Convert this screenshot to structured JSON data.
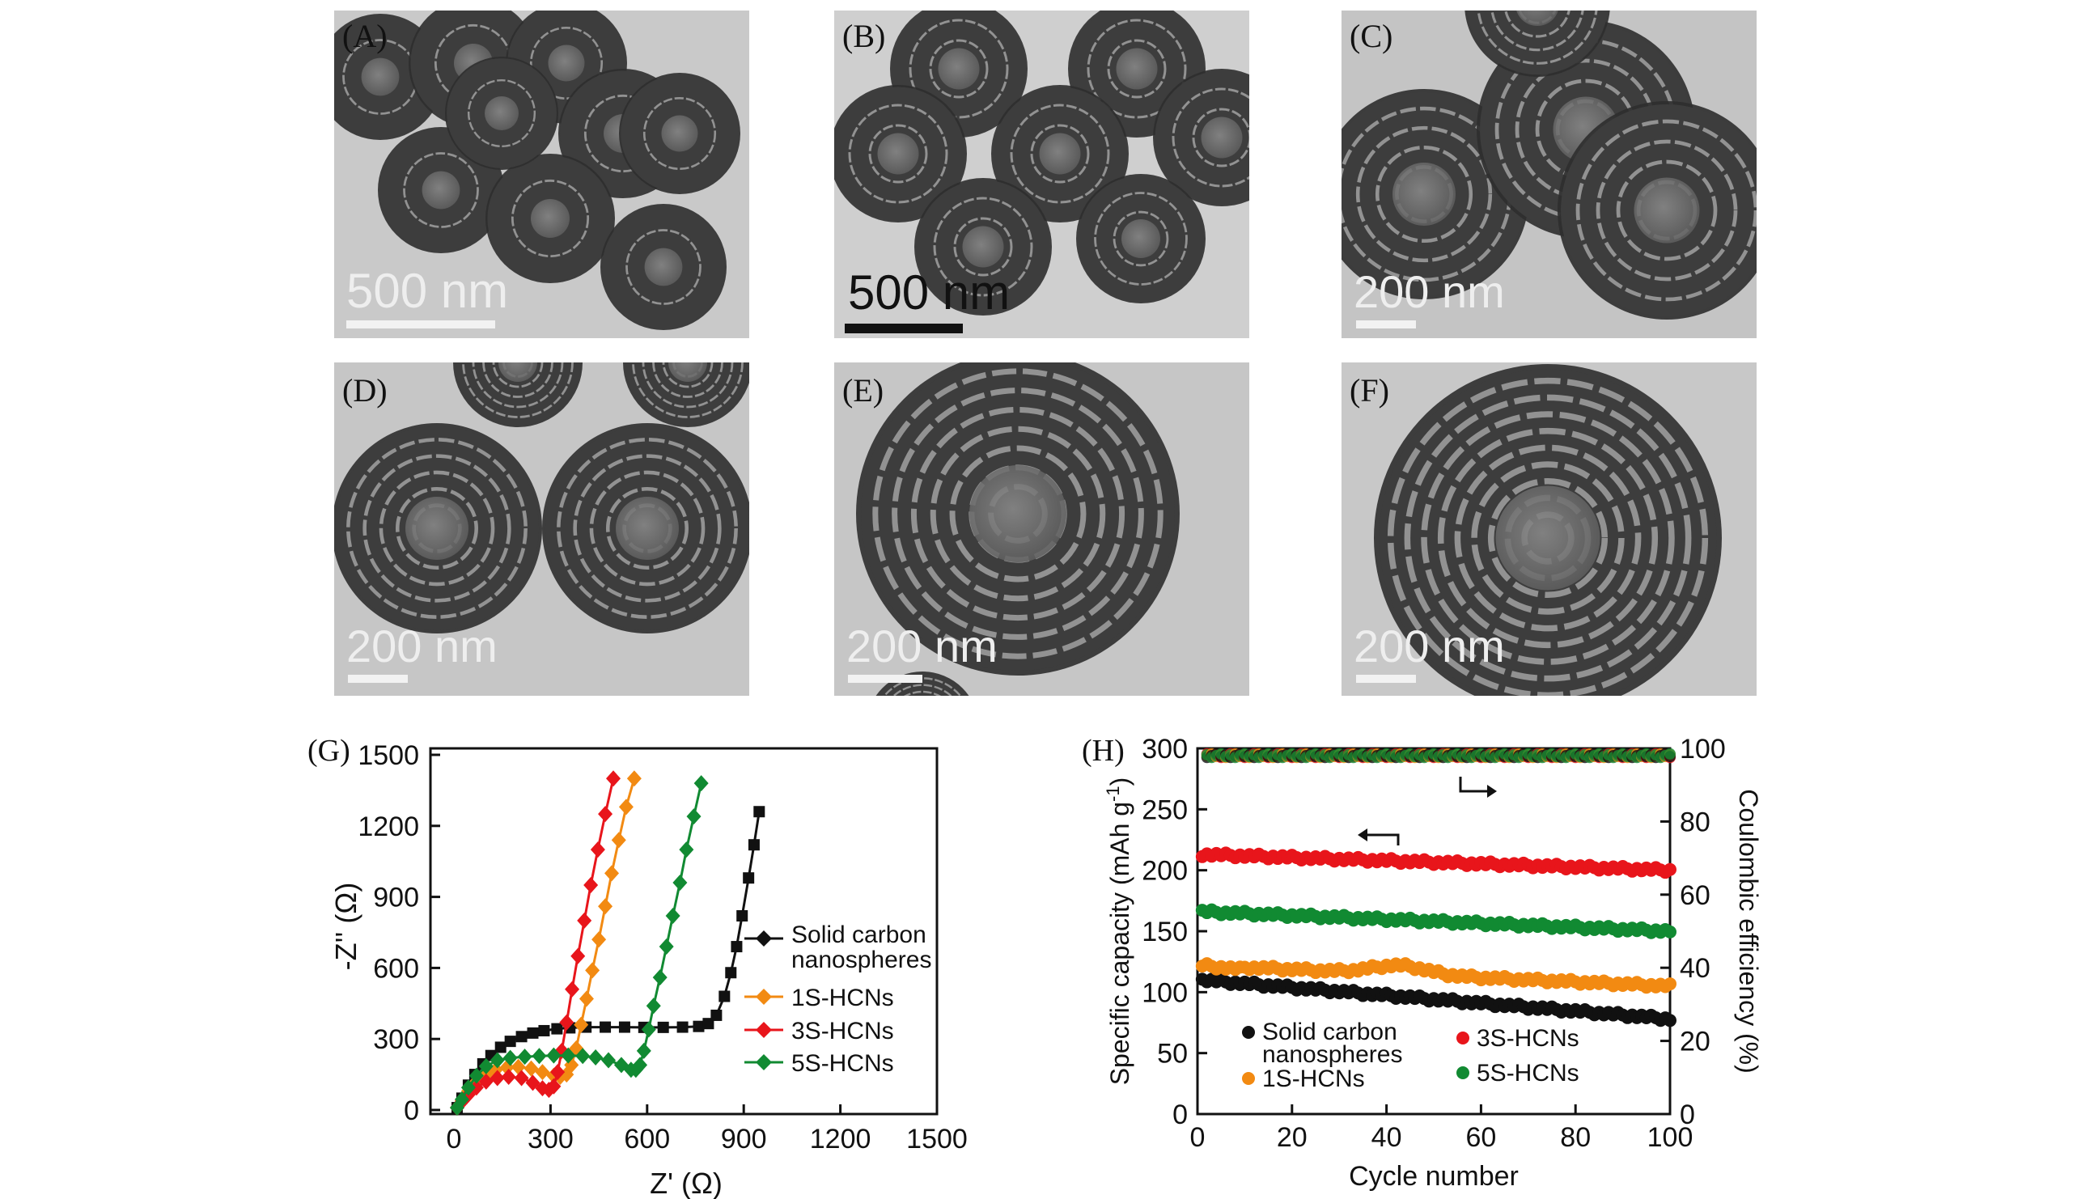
{
  "panels": [
    {
      "id": "A",
      "label": "(A)",
      "scale": "500 nm",
      "scale_bar_dark": false
    },
    {
      "id": "B",
      "label": "(B)",
      "scale": "500 nm",
      "scale_bar_dark": true
    },
    {
      "id": "C",
      "label": "(C)",
      "scale": "200 nm",
      "scale_bar_dark": false
    },
    {
      "id": "D",
      "label": "(D)",
      "scale": "200 nm",
      "scale_bar_dark": false
    },
    {
      "id": "E",
      "label": "(E)",
      "scale": "200 nm",
      "scale_bar_dark": false
    },
    {
      "id": "F",
      "label": "(F)",
      "scale": "200 nm",
      "scale_bar_dark": false
    }
  ],
  "colors": {
    "solid": "#111111",
    "s1": "#f28a12",
    "s3": "#e8151b",
    "s5": "#118a32",
    "axis": "#111111"
  },
  "chart_data": [
    {
      "id": "G",
      "panel_label": "(G)",
      "type": "line",
      "title": "",
      "xlabel": "Z' (Ω)",
      "ylabel": "-Z'' (Ω)",
      "xlim": [
        0,
        1500
      ],
      "ylim": [
        0,
        1500
      ],
      "x_ticks": [
        0,
        300,
        600,
        900,
        1200,
        1500
      ],
      "y_ticks": [
        0,
        300,
        600,
        900,
        1200,
        1500
      ],
      "legend": [
        "Solid carbon nanospheres",
        "1S-HCNs",
        "3S-HCNs",
        "5S-HCNs"
      ],
      "legend_position": "right",
      "series": [
        {
          "name": "Solid carbon nanospheres",
          "color": "#111111",
          "marker": "square",
          "points": [
            [
              10,
              10
            ],
            [
              25,
              50
            ],
            [
              45,
              105
            ],
            [
              65,
              150
            ],
            [
              90,
              195
            ],
            [
              115,
              230
            ],
            [
              145,
              265
            ],
            [
              175,
              290
            ],
            [
              210,
              310
            ],
            [
              245,
              325
            ],
            [
              280,
              335
            ],
            [
              320,
              343
            ],
            [
              360,
              347
            ],
            [
              410,
              350
            ],
            [
              470,
              350
            ],
            [
              530,
              350
            ],
            [
              590,
              349
            ],
            [
              650,
              349
            ],
            [
              710,
              350
            ],
            [
              760,
              353
            ],
            [
              790,
              365
            ],
            [
              815,
              400
            ],
            [
              840,
              480
            ],
            [
              860,
              580
            ],
            [
              878,
              690
            ],
            [
              895,
              820
            ],
            [
              915,
              980
            ],
            [
              932,
              1120
            ],
            [
              948,
              1260
            ]
          ]
        },
        {
          "name": "1S-HCNs",
          "color": "#f28a12",
          "marker": "diamond",
          "points": [
            [
              10,
              10
            ],
            [
              25,
              40
            ],
            [
              45,
              80
            ],
            [
              70,
              120
            ],
            [
              100,
              150
            ],
            [
              130,
              170
            ],
            [
              165,
              180
            ],
            [
              200,
              182
            ],
            [
              240,
              175
            ],
            [
              275,
              160
            ],
            [
              310,
              145
            ],
            [
              330,
              140
            ],
            [
              350,
              150
            ],
            [
              365,
              190
            ],
            [
              380,
              260
            ],
            [
              395,
              360
            ],
            [
              412,
              470
            ],
            [
              430,
              590
            ],
            [
              450,
              720
            ],
            [
              470,
              860
            ],
            [
              490,
              1000
            ],
            [
              512,
              1140
            ],
            [
              535,
              1280
            ],
            [
              560,
              1400
            ]
          ]
        },
        {
          "name": "3S-HCNs",
          "color": "#e8151b",
          "marker": "diamond",
          "points": [
            [
              10,
              10
            ],
            [
              25,
              35
            ],
            [
              45,
              65
            ],
            [
              70,
              95
            ],
            [
              100,
              120
            ],
            [
              135,
              135
            ],
            [
              170,
              140
            ],
            [
              210,
              135
            ],
            [
              245,
              115
            ],
            [
              275,
              92
            ],
            [
              295,
              85
            ],
            [
              310,
              100
            ],
            [
              322,
              160
            ],
            [
              335,
              250
            ],
            [
              350,
              370
            ],
            [
              367,
              510
            ],
            [
              385,
              650
            ],
            [
              405,
              800
            ],
            [
              425,
              950
            ],
            [
              447,
              1100
            ],
            [
              470,
              1250
            ],
            [
              495,
              1400
            ]
          ]
        },
        {
          "name": "5S-HCNs",
          "color": "#118a32",
          "marker": "diamond",
          "points": [
            [
              10,
              10
            ],
            [
              25,
              45
            ],
            [
              45,
              95
            ],
            [
              70,
              145
            ],
            [
              100,
              185
            ],
            [
              135,
              210
            ],
            [
              175,
              220
            ],
            [
              220,
              225
            ],
            [
              265,
              228
            ],
            [
              310,
              230
            ],
            [
              355,
              230
            ],
            [
              400,
              228
            ],
            [
              440,
              222
            ],
            [
              480,
              210
            ],
            [
              520,
              190
            ],
            [
              550,
              170
            ],
            [
              565,
              170
            ],
            [
              578,
              190
            ],
            [
              590,
              250
            ],
            [
              605,
              340
            ],
            [
              620,
              440
            ],
            [
              640,
              560
            ],
            [
              660,
              690
            ],
            [
              680,
              820
            ],
            [
              702,
              960
            ],
            [
              722,
              1100
            ],
            [
              745,
              1240
            ],
            [
              768,
              1380
            ]
          ]
        }
      ]
    },
    {
      "id": "H",
      "panel_label": "(H)",
      "type": "scatter",
      "title": "",
      "xlabel": "Cycle number",
      "ylabel": "Specific capacity (mAh g-1)",
      "ylabel2": "Coulombic efficiency (%)",
      "xlim": [
        0,
        100
      ],
      "ylim": [
        0,
        300
      ],
      "ylim2": [
        0,
        100
      ],
      "x_ticks": [
        0,
        20,
        40,
        60,
        80,
        100
      ],
      "y_ticks": [
        0,
        50,
        100,
        150,
        200,
        250,
        300
      ],
      "y2_ticks": [
        0,
        20,
        40,
        60,
        80,
        100
      ],
      "legend": [
        "Solid carbon nanospheres",
        "1S-HCNs",
        "3S-HCNs",
        "5S-HCNs"
      ],
      "legend_position": "bottom",
      "capacity_series": [
        {
          "name": "Solid carbon nanospheres",
          "color": "#111111",
          "start": 110,
          "end": 78
        },
        {
          "name": "1S-HCNs",
          "color": "#f28a12",
          "start": 122,
          "bump_cycle": 42,
          "bump_value": 122,
          "end": 105
        },
        {
          "name": "3S-HCNs",
          "color": "#e8151b",
          "start": 213,
          "end": 200
        },
        {
          "name": "5S-HCNs",
          "color": "#118a32",
          "start": 166,
          "end": 150
        }
      ],
      "coulombic_efficiency": 98
    }
  ]
}
